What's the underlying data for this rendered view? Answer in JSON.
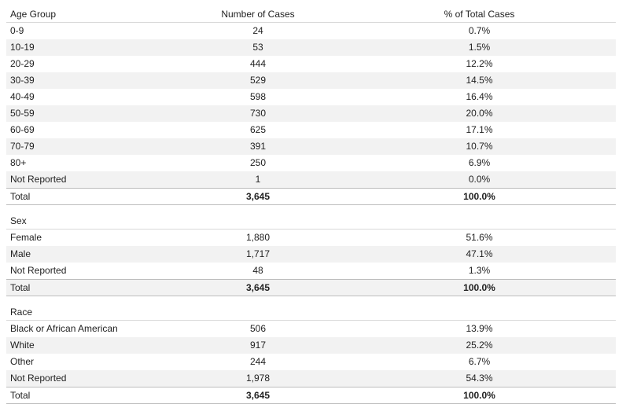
{
  "columns": {
    "group": "Age Group",
    "cases": "Number of Cases",
    "percent": "% of Total Cases"
  },
  "age": {
    "rows": [
      {
        "label": "0-9",
        "cases": "24",
        "percent": "0.7%"
      },
      {
        "label": "10-19",
        "cases": "53",
        "percent": "1.5%"
      },
      {
        "label": "20-29",
        "cases": "444",
        "percent": "12.2%"
      },
      {
        "label": "30-39",
        "cases": "529",
        "percent": "14.5%"
      },
      {
        "label": "40-49",
        "cases": "598",
        "percent": "16.4%"
      },
      {
        "label": "50-59",
        "cases": "730",
        "percent": "20.0%"
      },
      {
        "label": "60-69",
        "cases": "625",
        "percent": "17.1%"
      },
      {
        "label": "70-79",
        "cases": "391",
        "percent": "10.7%"
      },
      {
        "label": "80+",
        "cases": "250",
        "percent": "6.9%"
      },
      {
        "label": "Not Reported",
        "cases": "1",
        "percent": "0.0%"
      }
    ],
    "total": {
      "label": "Total",
      "cases": "3,645",
      "percent": "100.0%"
    }
  },
  "sex": {
    "title": "Sex",
    "rows": [
      {
        "label": "Female",
        "cases": "1,880",
        "percent": "51.6%"
      },
      {
        "label": "Male",
        "cases": "1,717",
        "percent": "47.1%"
      },
      {
        "label": "Not Reported",
        "cases": "48",
        "percent": "1.3%"
      }
    ],
    "total": {
      "label": "Total",
      "cases": "3,645",
      "percent": "100.0%"
    }
  },
  "race": {
    "title": "Race",
    "rows": [
      {
        "label": "Black or African American",
        "cases": "506",
        "percent": "13.9%"
      },
      {
        "label": "White",
        "cases": "917",
        "percent": "25.2%"
      },
      {
        "label": "Other",
        "cases": "244",
        "percent": "6.7%"
      },
      {
        "label": "Not Reported",
        "cases": "1,978",
        "percent": "54.3%"
      }
    ],
    "total": {
      "label": "Total",
      "cases": "3,645",
      "percent": "100.0%"
    }
  }
}
